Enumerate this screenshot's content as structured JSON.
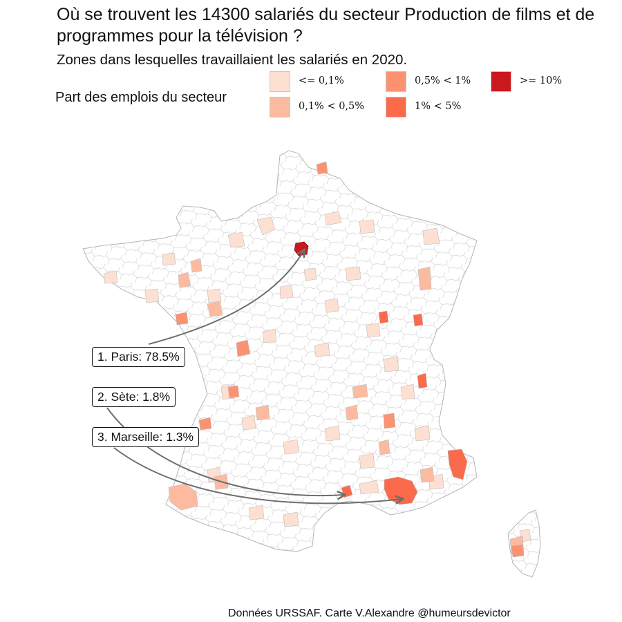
{
  "title": "Où se trouvent les 14300 salariés du secteur Production de films et de programmes pour la télévision ?",
  "subtitle": "Zones dans lesquelles travaillaient les salariés en 2020.",
  "legend": {
    "title": "Part des emplois du secteur",
    "items": [
      {
        "label": "<= 0,1%",
        "color": "#fee0d2"
      },
      {
        "label": "0,1% < 0,5%",
        "color": "#fcbba1"
      },
      {
        "label": "0,5% < 1%",
        "color": "#fc9272"
      },
      {
        "label": "1% < 5%",
        "color": "#fb6a4a"
      },
      {
        "label": ">= 10%",
        "color": "#cb181d"
      }
    ]
  },
  "callouts": [
    {
      "label": "1. Paris: 78.5%",
      "city": "Paris"
    },
    {
      "label": "2. Sète: 1.8%",
      "city": "Sète"
    },
    {
      "label": "3. Marseille: 1.3%",
      "city": "Marseille"
    }
  ],
  "caption": "Données URSSAF. Carte V.Alexandre @humeursdevictor",
  "colors": {
    "border": "#c8c8c8",
    "arrow": "#6e6e6e"
  }
}
